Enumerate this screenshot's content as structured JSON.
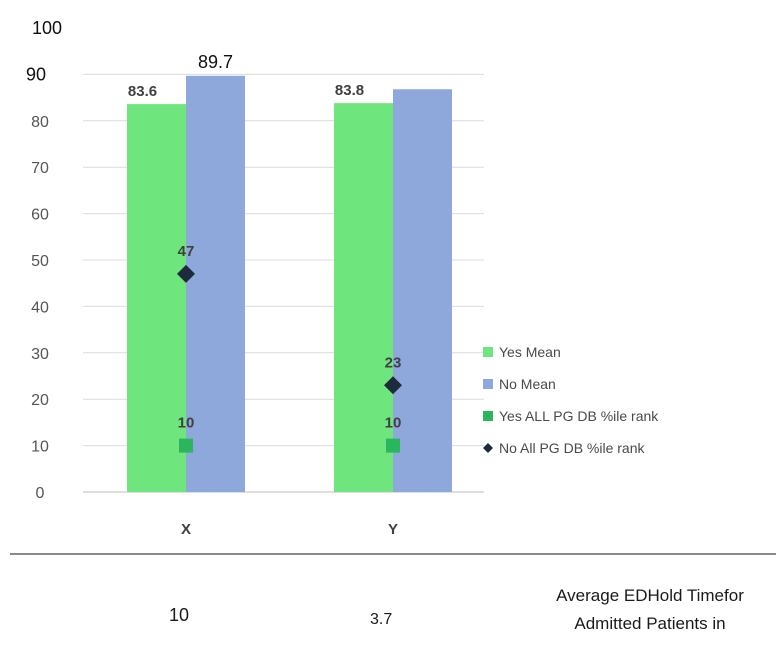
{
  "chart_data": {
    "type": "bar",
    "categories": [
      "X",
      "Y"
    ],
    "series": [
      {
        "name": "Yes Mean",
        "kind": "bar",
        "values": [
          83.6,
          83.8
        ],
        "color": "#6ee57d",
        "labels": [
          "83.6",
          "83.8"
        ]
      },
      {
        "name": "No Mean",
        "kind": "bar",
        "values": [
          89.7,
          86.8
        ],
        "color": "#8ea8dc",
        "labels": [
          "89.7",
          ""
        ]
      },
      {
        "name": "Yes ALL PG DB %ile rank",
        "kind": "marker",
        "marker": "square",
        "values": [
          10,
          10
        ],
        "color": "#2bb55e",
        "labels": [
          "10",
          "10"
        ]
      },
      {
        "name": "No All PG DB %ile rank",
        "kind": "marker",
        "marker": "diamond",
        "values": [
          47,
          23
        ],
        "color": "#1f2a3c",
        "labels": [
          "47",
          "23"
        ]
      }
    ],
    "y_ticks": [
      "0",
      "10",
      "20",
      "30",
      "40",
      "50",
      "60",
      "70",
      "80",
      "90",
      "100"
    ],
    "ylim": [
      0,
      100
    ],
    "grid": true,
    "legend_position": "right"
  },
  "footer": {
    "value_x": "10",
    "value_y": "3.7",
    "caption_line1": "Average EDHold Timefor",
    "caption_line2": "Admitted Patients in"
  }
}
